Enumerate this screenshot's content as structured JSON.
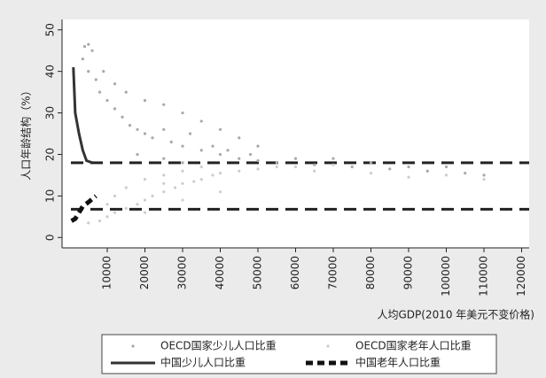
{
  "chart_data": {
    "type": "scatter",
    "ylabel": "人口年龄结构（%）",
    "xlabel": "人均GDP(2010 年美元不变价格)",
    "xlim": [
      -2000,
      122000
    ],
    "xticks": [
      10000,
      20000,
      30000,
      40000,
      50000,
      60000,
      70000,
      80000,
      90000,
      100000,
      110000,
      120000
    ],
    "ylim": [
      -2.5,
      52.5
    ],
    "yticks": [
      0,
      10,
      20,
      30,
      40,
      50
    ],
    "hlines": [
      18,
      6.8
    ],
    "hline_color": "#222222",
    "series": [
      {
        "name": "OECD国家少儿人口比重",
        "kind": "dot",
        "color": "#a8a8a8",
        "x": [
          4000,
          5000,
          6000,
          3500,
          5000,
          7000,
          8000,
          10000,
          12000,
          14000,
          16000,
          18000,
          20000,
          22000,
          25000,
          27000,
          30000,
          32000,
          35000,
          38000,
          40000,
          42000,
          45000,
          48000,
          50000,
          55000,
          60000,
          65000,
          70000,
          75000,
          80000,
          85000,
          90000,
          95000,
          100000,
          105000,
          110000,
          9000,
          12000,
          15000,
          20000,
          25000,
          30000,
          35000,
          40000,
          45000,
          50000,
          18000,
          25000,
          30000
        ],
        "y": [
          46,
          46.5,
          45,
          43,
          40,
          38,
          35,
          33,
          31,
          29,
          27,
          26,
          25,
          24,
          26,
          23,
          22,
          25,
          21,
          22,
          20,
          21,
          19,
          20,
          18.5,
          18,
          19,
          17.5,
          19,
          17,
          18,
          16.5,
          17,
          16,
          17,
          15.5,
          15,
          40,
          37,
          35,
          33,
          32,
          30,
          28,
          26,
          24,
          22,
          20,
          19,
          18
        ]
      },
      {
        "name": "OECD国家老年人口比重",
        "kind": "dot",
        "color": "#cdcdcd",
        "x": [
          5000,
          8000,
          10000,
          12000,
          15000,
          18000,
          20000,
          22000,
          25000,
          28000,
          30000,
          33000,
          35000,
          38000,
          40000,
          45000,
          50000,
          55000,
          60000,
          65000,
          70000,
          80000,
          90000,
          100000,
          110000,
          15000,
          20000,
          25000,
          30000,
          35000,
          10000,
          20000,
          30000,
          40000,
          12000,
          25000
        ],
        "y": [
          3.5,
          4,
          5,
          6,
          7,
          8,
          9,
          10,
          11,
          12,
          13,
          13.5,
          14,
          15,
          15.5,
          16,
          16.5,
          17,
          17,
          16,
          17.5,
          15.5,
          14.5,
          15,
          14,
          12,
          14,
          15,
          16,
          17,
          8,
          6,
          9,
          11,
          10,
          13
        ]
      },
      {
        "name": "中国少儿人口比重",
        "kind": "line",
        "color": "#333333",
        "x": [
          1000,
          1500,
          2500,
          3500,
          4500,
          6000
        ],
        "y": [
          41,
          30,
          25,
          21,
          18.5,
          18
        ]
      },
      {
        "name": "中国老年人口比重",
        "kind": "dash",
        "color": "#111111",
        "x": [
          500,
          1500,
          2500,
          3500,
          5000,
          7000
        ],
        "y": [
          4,
          4.5,
          6,
          7.5,
          8.5,
          10
        ]
      }
    ]
  }
}
